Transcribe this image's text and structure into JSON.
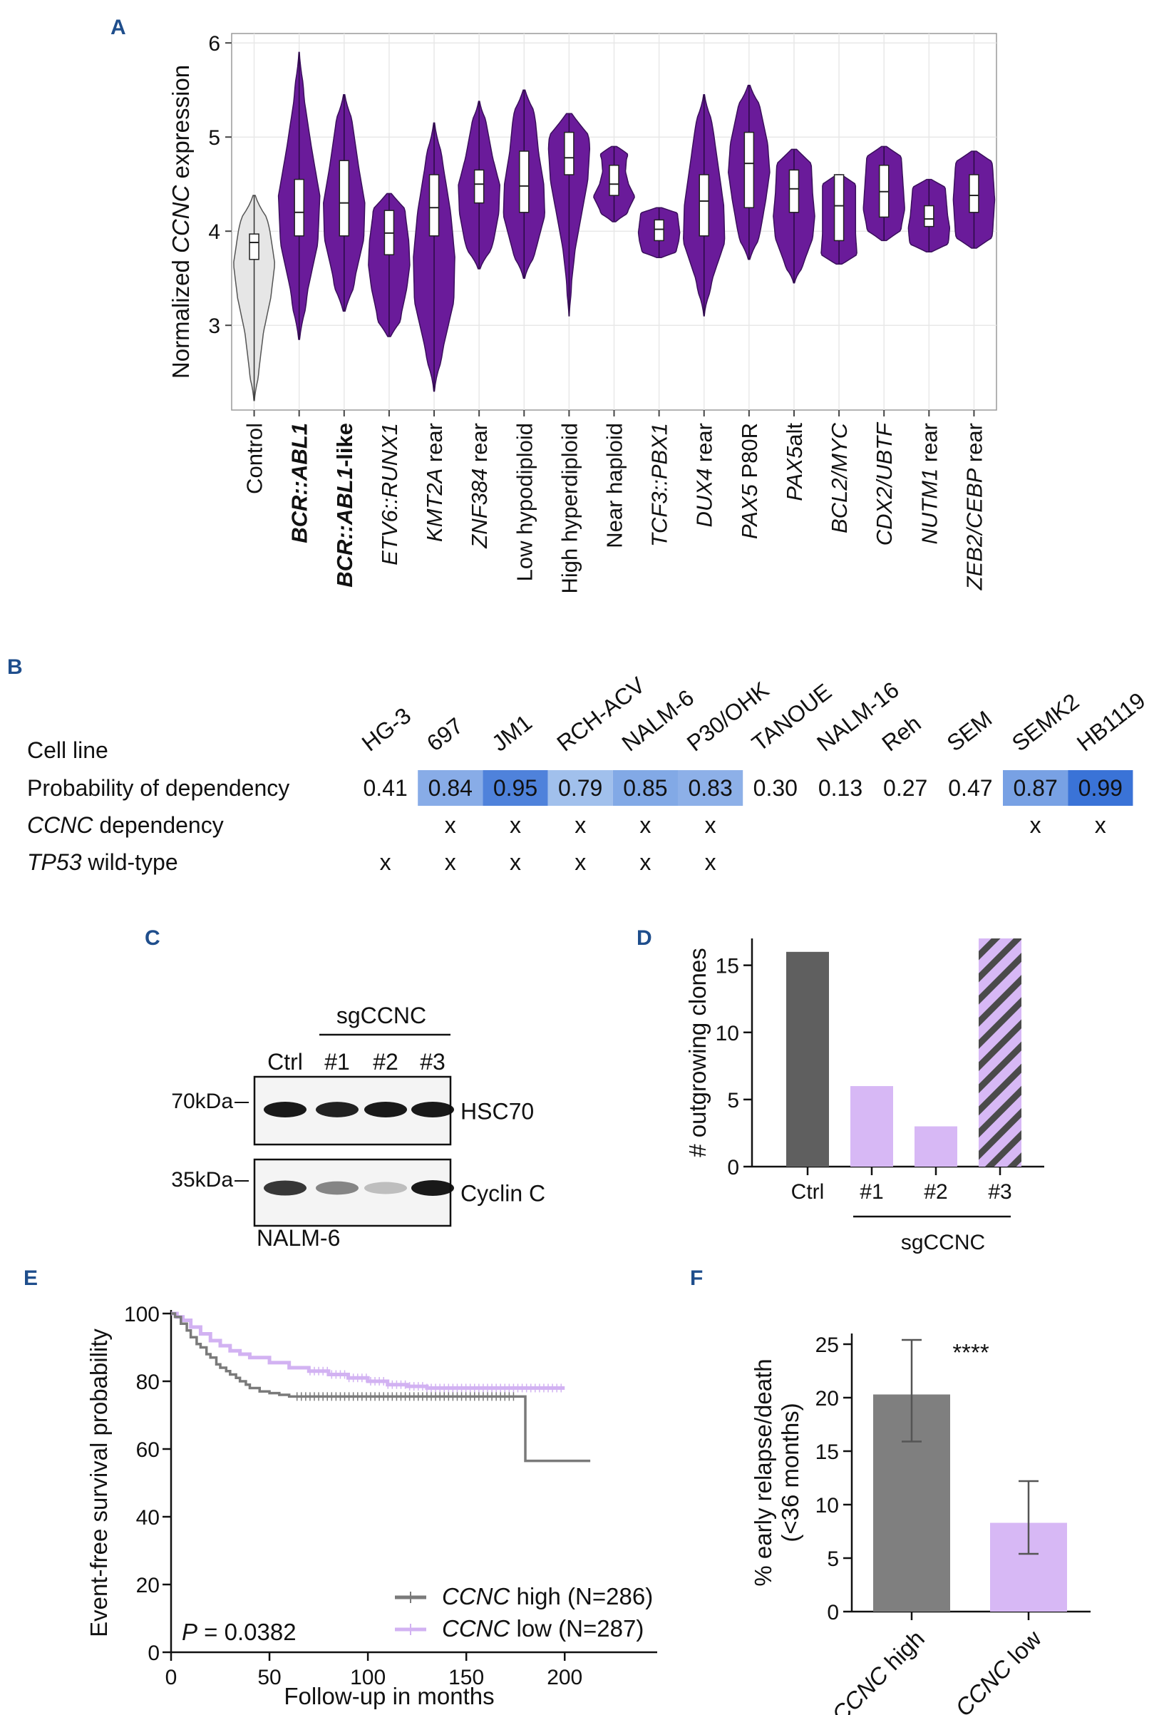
{
  "panels": {
    "A": "A",
    "B": "B",
    "C": "C",
    "D": "D",
    "E": "E",
    "F": "F"
  },
  "colors": {
    "violin": "#6a1b9a",
    "control": "#e6e6e6",
    "grid": "#e8e8e8",
    "heat_low": "#a9c4ec",
    "heat_high": "#3a74d6",
    "dark_bar": "#5f5f5f",
    "light_purple": "#d7b8f5",
    "gray_bar": "#7f7f7f",
    "km_high": "#7a7a7a",
    "km_low": "#d2b2f2"
  },
  "chart_data": [
    {
      "id": "A",
      "type": "violin",
      "ylabel_pre": "Normalized ",
      "ylabel_ital": "CCNC",
      "ylabel_post": " expression",
      "ylim": [
        2.1,
        6.1
      ],
      "yticks": [
        "3",
        "4",
        "5",
        "6"
      ],
      "ytick_values": [
        3,
        4,
        5,
        6
      ],
      "categories": [
        {
          "parts": [
            {
              "t": "Control",
              "i": false
            }
          ],
          "color": "#111111",
          "bold": false,
          "min": 2.2,
          "q1": 3.7,
          "med": 3.88,
          "q3": 3.97,
          "max": 4.38,
          "fill": "#e6e6e6",
          "shape": [
            0.08,
            0.25,
            0.45,
            0.8,
            1.0,
            0.75,
            0.35
          ]
        },
        {
          "parts": [
            {
              "t": "BCR::ABL1",
              "i": true
            }
          ],
          "color": "#2a7fa5",
          "bold": true,
          "min": 2.85,
          "q1": 3.95,
          "med": 4.2,
          "q3": 4.55,
          "max": 5.9,
          "fill": "#6a1b9a",
          "shape": [
            0.15,
            0.4,
            0.9,
            1.0,
            0.6,
            0.25,
            0.08
          ]
        },
        {
          "parts": [
            {
              "t": "BCR::ABL1",
              "i": true
            },
            {
              "t": "-like",
              "i": false
            }
          ],
          "color": "#2a7fa5",
          "bold": true,
          "min": 3.15,
          "q1": 3.95,
          "med": 4.3,
          "q3": 4.75,
          "max": 5.45,
          "fill": "#6a1b9a",
          "shape": [
            0.3,
            0.55,
            0.95,
            1.0,
            0.7,
            0.45,
            0.2
          ]
        },
        {
          "parts": [
            {
              "t": "ETV6::RUNX1",
              "i": true
            }
          ],
          "color": "#111111",
          "bold": false,
          "min": 2.88,
          "q1": 3.75,
          "med": 3.98,
          "q3": 4.22,
          "max": 4.4,
          "fill": "#6a1b9a",
          "shape": [
            0.45,
            0.6,
            0.85,
            1.0,
            0.95,
            0.8,
            0.7
          ]
        },
        {
          "parts": [
            {
              "t": "KMT2A",
              "i": true
            },
            {
              "t": " rear",
              "i": false
            }
          ],
          "color": "#111111",
          "bold": false,
          "min": 2.3,
          "q1": 3.95,
          "med": 4.25,
          "q3": 4.6,
          "max": 5.15,
          "fill": "#6a1b9a",
          "shape": [
            0.1,
            0.45,
            0.95,
            1.0,
            0.8,
            0.45,
            0.15
          ]
        },
        {
          "parts": [
            {
              "t": "ZNF384",
              "i": true
            },
            {
              "t": " rear",
              "i": false
            }
          ],
          "color": "#111111",
          "bold": false,
          "min": 3.6,
          "q1": 4.3,
          "med": 4.5,
          "q3": 4.65,
          "max": 5.38,
          "fill": "#6a1b9a",
          "shape": [
            0.3,
            0.7,
            0.95,
            1.0,
            0.65,
            0.4,
            0.15
          ]
        },
        {
          "parts": [
            {
              "t": "Low hypodiploid",
              "i": false
            }
          ],
          "color": "#111111",
          "bold": false,
          "min": 3.5,
          "q1": 4.2,
          "med": 4.48,
          "q3": 4.85,
          "max": 5.5,
          "fill": "#6a1b9a",
          "shape": [
            0.2,
            0.6,
            1.0,
            0.95,
            0.7,
            0.55,
            0.3
          ]
        },
        {
          "parts": [
            {
              "t": "High hyperdiploid",
              "i": false
            }
          ],
          "color": "#111111",
          "bold": false,
          "min": 3.1,
          "q1": 4.6,
          "med": 4.78,
          "q3": 5.05,
          "max": 5.25,
          "fill": "#6a1b9a",
          "shape": [
            0.05,
            0.12,
            0.3,
            0.6,
            0.9,
            1.0,
            0.85
          ]
        },
        {
          "parts": [
            {
              "t": "Near haploid",
              "i": false
            }
          ],
          "color": "#111111",
          "bold": false,
          "min": 4.1,
          "q1": 4.38,
          "med": 4.5,
          "q3": 4.7,
          "max": 4.9,
          "fill": "#6a1b9a",
          "shape": [
            0.5,
            0.7,
            1.0,
            0.7,
            0.55,
            0.6,
            0.8
          ]
        },
        {
          "parts": [
            {
              "t": "TCF3::PBX1",
              "i": true
            }
          ],
          "color": "#111111",
          "bold": false,
          "min": 3.72,
          "q1": 3.9,
          "med": 4.02,
          "q3": 4.12,
          "max": 4.25,
          "fill": "#6a1b9a",
          "shape": [
            0.75,
            0.85,
            0.95,
            1.0,
            0.95,
            0.9,
            0.85
          ]
        },
        {
          "parts": [
            {
              "t": "DUX4",
              "i": true
            },
            {
              "t": " rear",
              "i": false
            }
          ],
          "color": "#111111",
          "bold": false,
          "min": 3.1,
          "q1": 3.95,
          "med": 4.32,
          "q3": 4.6,
          "max": 5.45,
          "fill": "#6a1b9a",
          "shape": [
            0.08,
            0.4,
            1.0,
            0.95,
            0.7,
            0.45,
            0.15
          ]
        },
        {
          "parts": [
            {
              "t": "PAX5",
              "i": true
            },
            {
              "t": " P80R",
              "i": false
            }
          ],
          "color": "#111111",
          "bold": false,
          "min": 3.7,
          "q1": 4.25,
          "med": 4.72,
          "q3": 5.05,
          "max": 5.55,
          "fill": "#6a1b9a",
          "shape": [
            0.25,
            0.55,
            0.8,
            1.0,
            0.9,
            0.6,
            0.3
          ]
        },
        {
          "parts": [
            {
              "t": "PAX5",
              "i": true
            },
            {
              "t": "alt",
              "i": false
            }
          ],
          "color": "#111111",
          "bold": false,
          "min": 3.45,
          "q1": 4.2,
          "med": 4.45,
          "q3": 4.65,
          "max": 4.87,
          "fill": "#6a1b9a",
          "shape": [
            0.15,
            0.5,
            0.9,
            1.0,
            0.9,
            0.85,
            0.8
          ]
        },
        {
          "parts": [
            {
              "t": "BCL2/MYC",
              "i": true
            }
          ],
          "color": "#111111",
          "bold": false,
          "min": 3.65,
          "q1": 3.9,
          "med": 4.27,
          "q3": 4.6,
          "max": 4.6,
          "fill": "#6a1b9a",
          "shape": [
            0.9,
            0.85,
            0.8,
            0.8,
            0.8,
            0.8,
            0.8
          ]
        },
        {
          "parts": [
            {
              "t": "CDX2/UBTF",
              "i": true
            }
          ],
          "color": "#111111",
          "bold": false,
          "min": 3.9,
          "q1": 4.15,
          "med": 4.42,
          "q3": 4.7,
          "max": 4.9,
          "fill": "#6a1b9a",
          "shape": [
            0.75,
            0.85,
            1.0,
            0.95,
            0.9,
            0.85,
            0.8
          ]
        },
        {
          "parts": [
            {
              "t": "NUTM1",
              "i": true
            },
            {
              "t": " rear",
              "i": false
            }
          ],
          "color": "#111111",
          "bold": false,
          "min": 3.78,
          "q1": 4.05,
          "med": 4.13,
          "q3": 4.27,
          "max": 4.55,
          "fill": "#6a1b9a",
          "shape": [
            0.85,
            0.95,
            1.0,
            0.9,
            0.85,
            0.8,
            0.75
          ]
        },
        {
          "parts": [
            {
              "t": "ZEB2/CEBP",
              "i": true
            },
            {
              "t": " rear",
              "i": false
            }
          ],
          "color": "#111111",
          "bold": false,
          "min": 3.82,
          "q1": 4.2,
          "med": 4.38,
          "q3": 4.6,
          "max": 4.85,
          "fill": "#6a1b9a",
          "shape": [
            0.8,
            0.9,
            0.95,
            1.0,
            0.95,
            0.9,
            0.8
          ]
        }
      ]
    },
    {
      "id": "B",
      "type": "table",
      "row_labels": {
        "cell_line": "Cell line",
        "prob": "Probability of dependency",
        "dep_ital": "CCNC",
        "dep_rest": " dependency",
        "tp_ital": "TP53",
        "tp_rest": " wild-type"
      },
      "cell_lines": [
        "HG-3",
        "697",
        "JM1",
        "RCH-ACV",
        "NALM-6",
        "P30/OHK",
        "TANOUE",
        "NALM-16",
        "Reh",
        "SEM",
        "SEMK2",
        "HB1119"
      ],
      "prob": [
        "0.41",
        "0.84",
        "0.95",
        "0.79",
        "0.85",
        "0.83",
        "0.30",
        "0.13",
        "0.27",
        "0.47",
        "0.87",
        "0.99"
      ],
      "prob_values": [
        0.41,
        0.84,
        0.95,
        0.79,
        0.85,
        0.83,
        0.3,
        0.13,
        0.27,
        0.47,
        0.87,
        0.99
      ],
      "ccnc_dep": [
        "",
        "x",
        "x",
        "x",
        "x",
        "x",
        "",
        "",
        "",
        "",
        "x",
        "x"
      ],
      "tp53_wt": [
        "x",
        "x",
        "x",
        "x",
        "x",
        "x",
        "",
        "",
        "",
        "",
        "",
        ""
      ]
    },
    {
      "id": "C",
      "type": "western_blot",
      "group_label": "sgCCNC",
      "lanes": [
        "Ctrl",
        "#1",
        "#2",
        "#3"
      ],
      "markers": [
        "70kDa",
        "35kDa"
      ],
      "proteins": [
        "HSC70",
        "Cyclin C"
      ],
      "cell_line": "NALM-6",
      "band_intensity": {
        "HSC70": [
          1.0,
          0.95,
          1.0,
          1.0
        ],
        "Cyclin C": [
          0.85,
          0.45,
          0.15,
          1.0
        ]
      }
    },
    {
      "id": "D",
      "type": "bar",
      "ylabel": "# outgrowing clones",
      "categories": [
        "Ctrl",
        "#1",
        "#2",
        "#3"
      ],
      "values": [
        16,
        6,
        3,
        17
      ],
      "ylim": [
        0,
        17
      ],
      "yticks": [
        "0",
        "5",
        "10",
        "15"
      ],
      "ytick_values": [
        0,
        5,
        10,
        15
      ],
      "group_label": "sgCCNC"
    },
    {
      "id": "E",
      "type": "line",
      "ylabel": "Event-free survival probability",
      "xlabel": "Follow-up in months",
      "ylim": [
        0,
        100
      ],
      "xlim": [
        0,
        225
      ],
      "yticks": [
        "0",
        "20",
        "40",
        "60",
        "80",
        "100"
      ],
      "ytick_values": [
        0,
        20,
        40,
        60,
        80,
        100
      ],
      "xticks": [
        "0",
        "50",
        "100",
        "150",
        "200"
      ],
      "xtick_values": [
        0,
        50,
        100,
        150,
        200
      ],
      "p_label": "P",
      "p_value": " = 0.0382",
      "series": [
        {
          "name_ital": "CCNC",
          "name_rest": " high (N=286)",
          "color": "#7a7a7a",
          "x": [
            0,
            2,
            5,
            8,
            10,
            13,
            15,
            18,
            20,
            23,
            25,
            28,
            30,
            33,
            35,
            38,
            40,
            45,
            50,
            55,
            60,
            80,
            100,
            120,
            140,
            160,
            180,
            180,
            200,
            213
          ],
          "y": [
            100,
            99,
            97,
            95,
            93,
            91,
            90,
            88,
            87,
            85,
            84,
            83,
            82,
            81,
            80,
            79,
            78,
            77,
            76.5,
            76,
            75.5,
            75.5,
            75.5,
            75.5,
            75.5,
            75.5,
            75.5,
            56.5,
            56.5,
            56.5
          ]
        },
        {
          "name_ital": "CCNC",
          "name_rest": " low (N=287)",
          "color": "#d2b2f2",
          "x": [
            0,
            3,
            6,
            10,
            15,
            20,
            25,
            30,
            35,
            40,
            50,
            60,
            70,
            80,
            90,
            100,
            110,
            120,
            130,
            140,
            160,
            180,
            200
          ],
          "y": [
            100,
            99,
            98,
            96,
            94,
            92,
            90.5,
            89,
            88,
            87,
            85.5,
            84,
            83,
            82,
            81,
            80,
            79,
            78.5,
            78,
            78,
            78,
            78,
            78
          ]
        }
      ]
    },
    {
      "id": "F",
      "type": "bar",
      "ylabel1": "% early relapse/death",
      "ylabel2": "(<36 months)",
      "categories": [
        {
          "ital": "CCNC",
          "rest": " high"
        },
        {
          "ital": "CCNC",
          "rest": " low"
        }
      ],
      "values": [
        20.3,
        8.3
      ],
      "err_low": [
        15.9,
        5.4
      ],
      "err_high": [
        25.4,
        12.2
      ],
      "ylim": [
        0,
        26
      ],
      "yticks": [
        "0",
        "5",
        "10",
        "15",
        "20",
        "25"
      ],
      "ytick_values": [
        0,
        5,
        10,
        15,
        20,
        25
      ],
      "significance": "****"
    }
  ]
}
